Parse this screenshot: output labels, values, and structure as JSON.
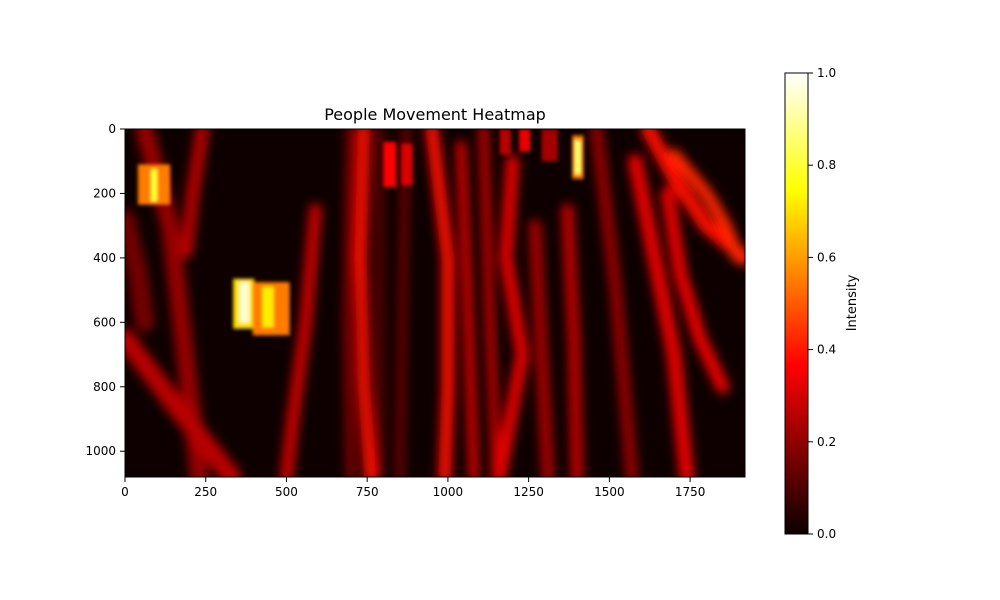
{
  "chart_data": {
    "type": "heatmap",
    "title": "People Movement Heatmap",
    "xlabel": "",
    "ylabel": "",
    "xlim": [
      0,
      1920
    ],
    "ylim": [
      1080,
      0
    ],
    "x_ticks": [
      0,
      250,
      500,
      750,
      1000,
      1250,
      1500,
      1750
    ],
    "y_ticks": [
      0,
      200,
      400,
      600,
      800,
      1000
    ],
    "colormap": "hot",
    "colorbar": {
      "label": "Intensity",
      "range": [
        0.0,
        1.0
      ],
      "ticks": [
        "0.0",
        "0.2",
        "0.4",
        "0.6",
        "0.8",
        "1.0"
      ]
    },
    "vertical_trails": [
      {
        "x": [
          60,
          140,
          230
        ],
        "y": [
          0,
          300,
          1080
        ],
        "width": 55,
        "value": 0.2
      },
      {
        "x": [
          240,
          210,
          190
        ],
        "y": [
          0,
          200,
          380
        ],
        "width": 40,
        "value": 0.25
      },
      {
        "x": [
          0,
          40,
          60
        ],
        "y": [
          280,
          450,
          600
        ],
        "width": 60,
        "value": 0.15
      },
      {
        "x": [
          0,
          150,
          330
        ],
        "y": [
          650,
          850,
          1080
        ],
        "width": 60,
        "value": 0.25
      },
      {
        "x": [
          590,
          560,
          520,
          500
        ],
        "y": [
          250,
          600,
          900,
          1080
        ],
        "width": 38,
        "value": 0.28
      },
      {
        "x": [
          740,
          730,
          740,
          760
        ],
        "y": [
          0,
          400,
          800,
          1080
        ],
        "width": 38,
        "value": 0.38
      },
      {
        "x": [
          700,
          690,
          700
        ],
        "y": [
          0,
          600,
          1080
        ],
        "width": 28,
        "value": 0.18
      },
      {
        "x": [
          790,
          790
        ],
        "y": [
          0,
          1080
        ],
        "width": 26,
        "value": 0.12
      },
      {
        "x": [
          870,
          860,
          850
        ],
        "y": [
          0,
          500,
          1080
        ],
        "width": 28,
        "value": 0.14
      },
      {
        "x": [
          950,
          1000,
          1000,
          990
        ],
        "y": [
          0,
          400,
          800,
          1080
        ],
        "width": 40,
        "value": 0.38
      },
      {
        "x": [
          1040,
          1060,
          1080
        ],
        "y": [
          50,
          500,
          1080
        ],
        "width": 30,
        "value": 0.3
      },
      {
        "x": [
          1110,
          1130,
          1150
        ],
        "y": [
          0,
          600,
          1080
        ],
        "width": 30,
        "value": 0.26
      },
      {
        "x": [
          1200,
          1180,
          1230,
          1160
        ],
        "y": [
          100,
          400,
          700,
          1080
        ],
        "width": 40,
        "value": 0.32
      },
      {
        "x": [
          1270,
          1290,
          1310
        ],
        "y": [
          300,
          700,
          1080
        ],
        "width": 40,
        "value": 0.22
      },
      {
        "x": [
          1370,
          1390,
          1400
        ],
        "y": [
          250,
          650,
          1080
        ],
        "width": 38,
        "value": 0.26
      },
      {
        "x": [
          1460,
          1520,
          1570
        ],
        "y": [
          0,
          500,
          1080
        ],
        "width": 38,
        "value": 0.2
      },
      {
        "x": [
          1580,
          1650,
          1700,
          1740
        ],
        "y": [
          100,
          450,
          700,
          1080
        ],
        "width": 45,
        "value": 0.32
      },
      {
        "x": [
          1620,
          1700,
          1800,
          1920
        ],
        "y": [
          0,
          150,
          300,
          400
        ],
        "width": 45,
        "value": 0.38
      },
      {
        "x": [
          1700,
          1800,
          1860,
          1900
        ],
        "y": [
          80,
          200,
          300,
          400
        ],
        "width": 38,
        "value": 0.42
      },
      {
        "x": [
          1680,
          1720,
          1780,
          1850
        ],
        "y": [
          200,
          450,
          650,
          800
        ],
        "width": 42,
        "value": 0.32
      }
    ],
    "hotspots": [
      {
        "x0": 40,
        "x1": 140,
        "y0": 110,
        "y1": 235,
        "value": 0.55
      },
      {
        "x0": 80,
        "x1": 100,
        "y0": 125,
        "y1": 225,
        "value": 0.8
      },
      {
        "x0": 335,
        "x1": 400,
        "y0": 465,
        "y1": 620,
        "value": 0.7
      },
      {
        "x0": 355,
        "x1": 385,
        "y0": 475,
        "y1": 600,
        "value": 0.95
      },
      {
        "x0": 395,
        "x1": 510,
        "y0": 475,
        "y1": 640,
        "value": 0.55
      },
      {
        "x0": 425,
        "x1": 460,
        "y0": 490,
        "y1": 615,
        "value": 0.72
      },
      {
        "x0": 800,
        "x1": 840,
        "y0": 40,
        "y1": 180,
        "value": 0.35
      },
      {
        "x0": 855,
        "x1": 890,
        "y0": 45,
        "y1": 175,
        "value": 0.3
      },
      {
        "x0": 1385,
        "x1": 1420,
        "y0": 20,
        "y1": 155,
        "value": 0.55
      },
      {
        "x0": 1392,
        "x1": 1412,
        "y0": 35,
        "y1": 140,
        "value": 0.85
      },
      {
        "x0": 1220,
        "x1": 1255,
        "y0": 0,
        "y1": 70,
        "value": 0.32
      },
      {
        "x0": 1160,
        "x1": 1195,
        "y0": 0,
        "y1": 80,
        "value": 0.25
      },
      {
        "x0": 1290,
        "x1": 1340,
        "y0": 0,
        "y1": 100,
        "value": 0.22
      }
    ]
  }
}
